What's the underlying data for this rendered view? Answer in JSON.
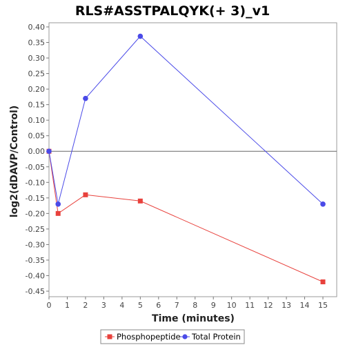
{
  "chart_data": {
    "type": "line",
    "title": "RLS#ASSTPALQYK(+ 3)_v1",
    "xlabel": "Time (minutes)",
    "ylabel": "log2(dDAVP/Control)",
    "xlim": [
      0,
      15.5
    ],
    "ylim": [
      -0.46,
      0.41
    ],
    "x_ticks": [
      0,
      1,
      2,
      3,
      4,
      5,
      6,
      7,
      8,
      9,
      10,
      11,
      12,
      13,
      14,
      15
    ],
    "y_ticks": [
      0.4,
      0.35,
      0.3,
      0.25,
      0.2,
      0.15,
      0.1,
      0.05,
      0.0,
      -0.05,
      -0.1,
      -0.15,
      -0.2,
      -0.25,
      -0.3,
      -0.35,
      -0.4,
      -0.45
    ],
    "y_tick_labels": [
      "0.40",
      "0.35",
      "0.30",
      "0.25",
      "0.20",
      "0.15",
      "0.10",
      "0.05",
      "0.00",
      "-0.05",
      "-0.10",
      "-0.15",
      "-0.20",
      "-0.25",
      "-0.30",
      "-0.35",
      "-0.40",
      "-0.45"
    ],
    "x_tick_labels": [
      "0",
      "1",
      "2",
      "3",
      "4",
      "5",
      "6",
      "7",
      "8",
      "9",
      "10",
      "11",
      "12",
      "13",
      "14",
      "15"
    ],
    "zero_line": true,
    "grid": false,
    "legend_position": "bottom-center",
    "series": [
      {
        "name": "Phosphopeptide",
        "color": "#e8413c",
        "marker": "square",
        "x": [
          0,
          0.5,
          2,
          5,
          15
        ],
        "y": [
          0.0,
          -0.2,
          -0.14,
          -0.16,
          -0.42
        ]
      },
      {
        "name": "Total Protein",
        "color": "#4a4ae8",
        "marker": "circle",
        "x": [
          0,
          0.5,
          2,
          5,
          15
        ],
        "y": [
          0.0,
          -0.17,
          0.17,
          0.37,
          -0.17
        ]
      }
    ]
  }
}
